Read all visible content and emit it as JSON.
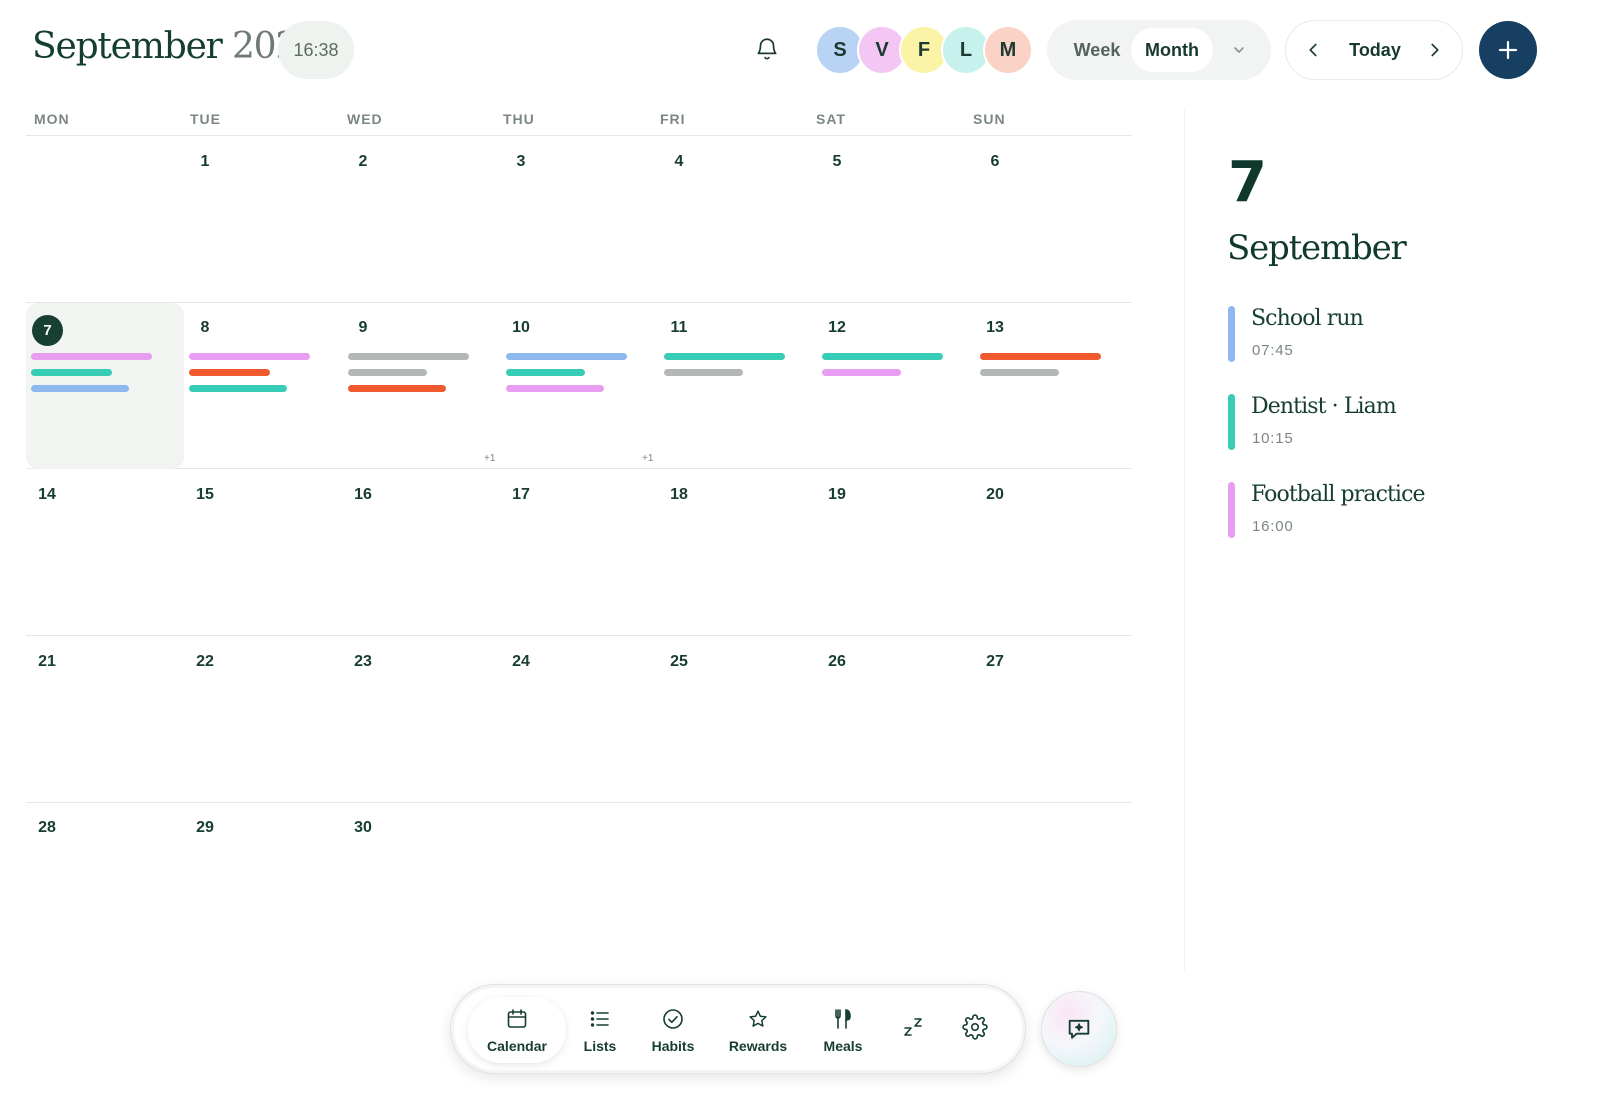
{
  "header": {
    "month": "September",
    "year": "2026",
    "time": "16:38",
    "view_options": {
      "week": "Week",
      "month": "Month",
      "selected": "Month"
    },
    "today_label": "Today"
  },
  "family": [
    {
      "initial": "S",
      "color": "#b9d3f4"
    },
    {
      "initial": "V",
      "color": "#f3c6f3"
    },
    {
      "initial": "F",
      "color": "#fbf3a6"
    },
    {
      "initial": "L",
      "color": "#c6f1ec"
    },
    {
      "initial": "M",
      "color": "#fbd2c6"
    }
  ],
  "weekdays": [
    "MON",
    "TUE",
    "WED",
    "THU",
    "FRI",
    "SAT",
    "SUN"
  ],
  "event_colors": {
    "pink": "#e89ef0",
    "teal": "#37ccb6",
    "blue": "#8db8f0",
    "gray": "#b3b7b5",
    "orange": "#f0592d"
  },
  "weeks": [
    {
      "days": [
        "",
        "1",
        "2",
        "3",
        "4",
        "5",
        "6"
      ]
    },
    {
      "days": [
        "7",
        "8",
        "9",
        "10",
        "11",
        "12",
        "13"
      ]
    },
    {
      "days": [
        "14",
        "15",
        "16",
        "17",
        "18",
        "19",
        "20"
      ]
    },
    {
      "days": [
        "21",
        "22",
        "23",
        "24",
        "25",
        "26",
        "27"
      ]
    },
    {
      "days": [
        "28",
        "29",
        "30",
        "",
        "",
        "",
        ""
      ]
    }
  ],
  "today": "7",
  "more_labels": {
    "10": "+1",
    "11": "+1"
  },
  "side_panel": {
    "day": "7",
    "month": "September",
    "events": [
      {
        "title": "School run",
        "time": "07:45",
        "color": "#8db8f0"
      },
      {
        "title": "Dentist · Liam",
        "time": "10:15",
        "color": "#37ccb6"
      },
      {
        "title": "Football practice",
        "time": "16:00",
        "color": "#e89ef0"
      }
    ]
  },
  "dock": {
    "calendar": "Calendar",
    "lists": "Lists",
    "habits": "Habits",
    "rewards": "Rewards",
    "meals": "Meals"
  }
}
